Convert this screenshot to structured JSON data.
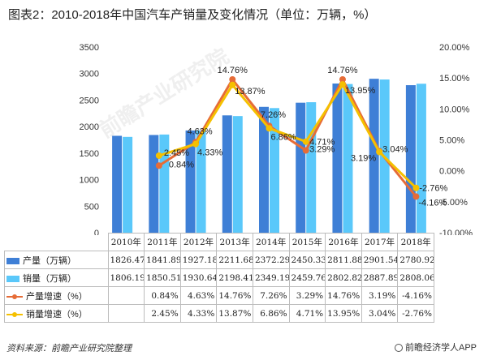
{
  "title": "图表2：2010-2018年中国汽车产销量及变化情况（单位：万辆，%）",
  "watermark": "前瞻产业研究院",
  "source": "资料来源：前瞻产业研究院整理",
  "brand": "前瞻经济学人APP",
  "colors": {
    "production_bar": "#3e7fd6",
    "sales_bar": "#5ac8fa",
    "production_growth": "#e66c37",
    "sales_growth": "#f5c000"
  },
  "chart_data": {
    "type": "bar",
    "categories": [
      "2010年",
      "2011年",
      "2012年",
      "2013年",
      "2014年",
      "2015年",
      "2016年",
      "2017年",
      "2018年"
    ],
    "series": [
      {
        "name": "产量（万辆）",
        "type": "bar",
        "axis": "left",
        "values": [
          1826.47,
          1841.89,
          1927.18,
          2211.68,
          2372.29,
          2450.33,
          2811.88,
          2901.54,
          2780.92
        ]
      },
      {
        "name": "销量（万辆）",
        "type": "bar",
        "axis": "left",
        "values": [
          1806.19,
          1850.51,
          1930.64,
          2198.41,
          2349.19,
          2459.76,
          2802.82,
          2887.89,
          2808.06
        ]
      },
      {
        "name": "产量增速（%）",
        "type": "line",
        "axis": "right",
        "values": [
          null,
          0.84,
          4.63,
          14.76,
          7.26,
          3.29,
          14.76,
          3.19,
          -4.16
        ],
        "labels": [
          "",
          "0.84%",
          "4.63%",
          "14.76%",
          "7.26%",
          "3.29%",
          "14.76%",
          "3.19%",
          "-4.16%"
        ]
      },
      {
        "name": "销量增速（%）",
        "type": "line",
        "axis": "right",
        "values": [
          null,
          2.45,
          4.33,
          13.87,
          6.86,
          4.71,
          13.95,
          3.04,
          -2.76
        ],
        "labels": [
          "",
          "2.45%",
          "4.33%",
          "13.87%",
          "6.86%",
          "4.71%",
          "13.95%",
          "3.04%",
          "-2.76%"
        ]
      }
    ],
    "y_left": {
      "min": 0,
      "max": 3500,
      "ticks": [
        "0",
        "500",
        "1000",
        "1500",
        "2000",
        "2500",
        "3000",
        "3500"
      ]
    },
    "y_right": {
      "min": -10,
      "max": 20,
      "ticks": [
        "-10.00%",
        "-5.00%",
        "0.00%",
        "5.00%",
        "10.00%",
        "15.00%",
        "20.00%"
      ]
    },
    "grid": false,
    "legend": "table-bottom"
  },
  "table": {
    "rows": [
      {
        "label": "产量（万辆）",
        "cells": [
          "1826.47",
          "1841.89",
          "1927.18",
          "2211.68",
          "2372.29",
          "2450.33",
          "2811.88",
          "2901.54",
          "2780.92"
        ]
      },
      {
        "label": "销量（万辆）",
        "cells": [
          "1806.19",
          "1850.51",
          "1930.64",
          "2198.41",
          "2349.19",
          "2459.76",
          "2802.82",
          "2887.89",
          "2808.06"
        ]
      },
      {
        "label": "产量增速（%）",
        "cells": [
          "",
          "0.84%",
          "4.63%",
          "14.76%",
          "7.26%",
          "3.29%",
          "14.76%",
          "3.19%",
          "-4.16%"
        ]
      },
      {
        "label": "销量增速（%）",
        "cells": [
          "",
          "2.45%",
          "4.33%",
          "13.87%",
          "6.86%",
          "4.71%",
          "13.95%",
          "3.04%",
          "-2.76%"
        ]
      }
    ]
  }
}
